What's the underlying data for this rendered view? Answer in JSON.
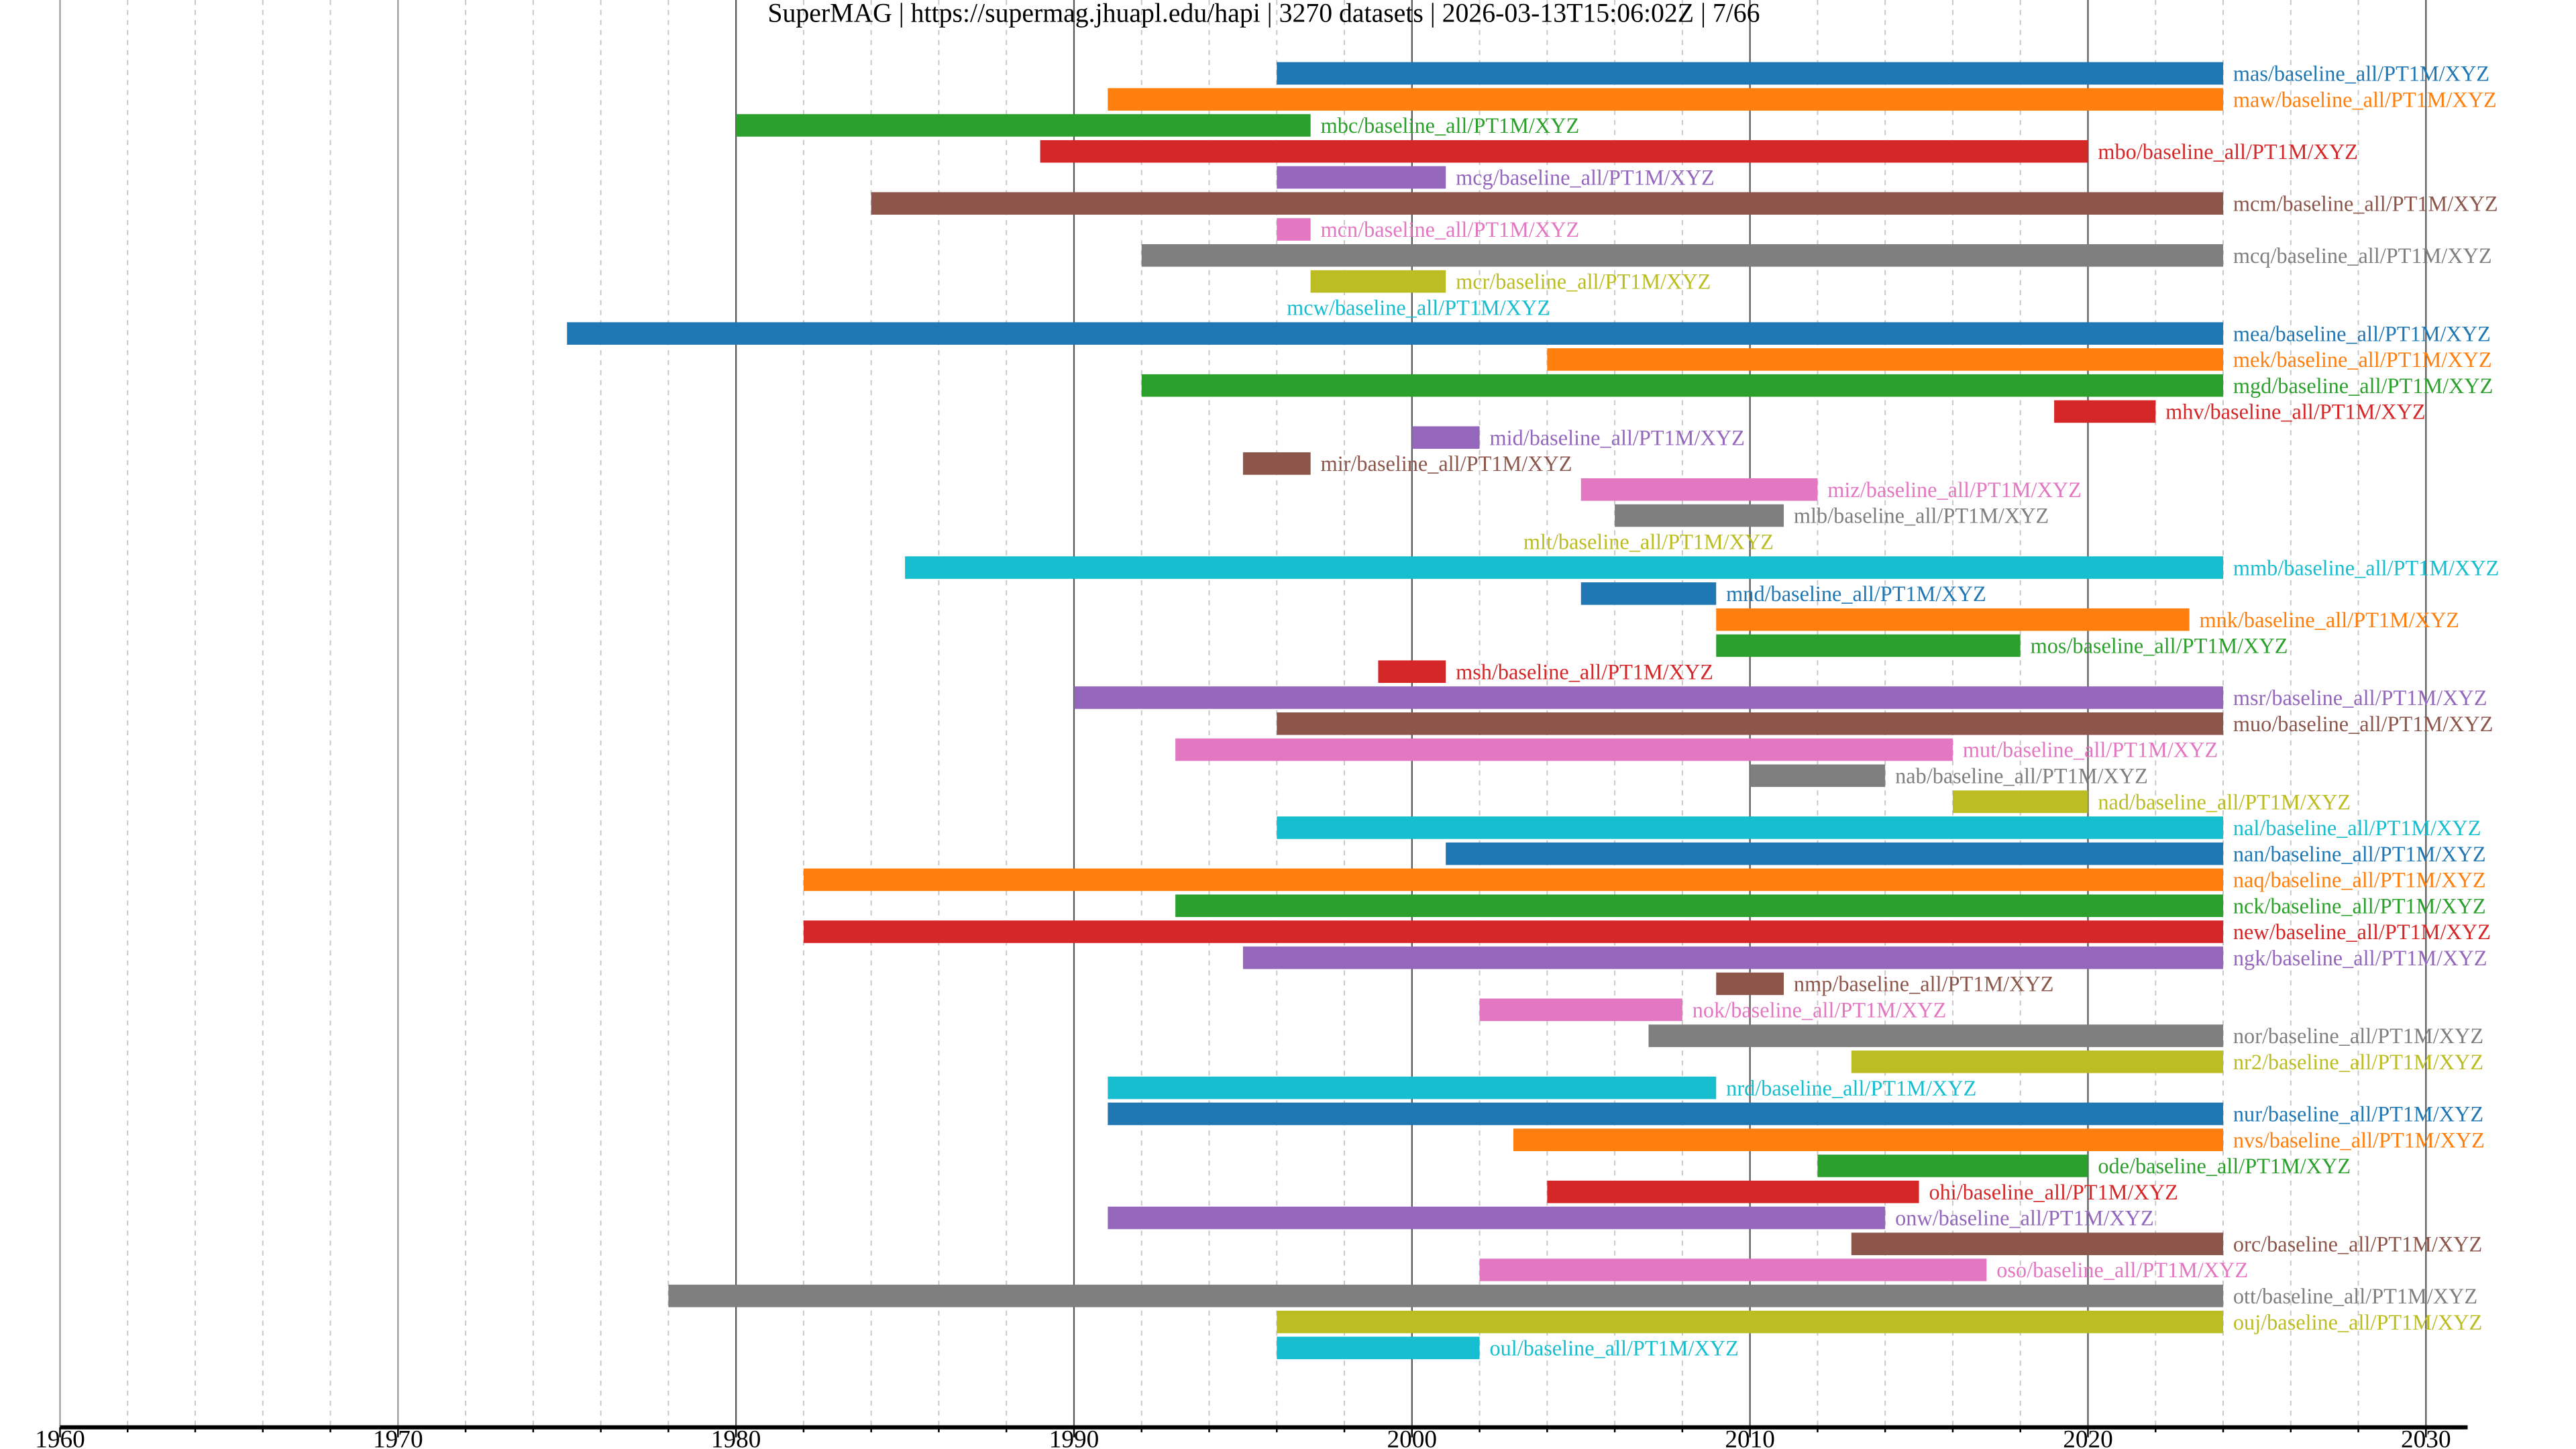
{
  "chart_data": {
    "type": "timeline",
    "title": "SuperMAG | https://supermag.jhuapl.edu/hapi | 3270 datasets | 2026-03-13T15:06:02Z | 7/66",
    "xlabel": "",
    "ylabel": "",
    "xlim": [
      1960,
      2031
    ],
    "x_ticks": [
      1960,
      1970,
      1980,
      1990,
      2000,
      2010,
      2020,
      2030
    ],
    "x_tick_labels": [
      "1960",
      "1970",
      "1980",
      "1990",
      "2000",
      "2010",
      "2020",
      "2030"
    ],
    "minor_tick_step": 2,
    "grid": true,
    "colors": [
      "#1f77b4",
      "#ff7f0e",
      "#2ca02c",
      "#d62728",
      "#9467bd",
      "#8c564b",
      "#e377c2",
      "#7f7f7f",
      "#bcbd22",
      "#17becf"
    ],
    "series": [
      {
        "name": "mas/baseline_all/PT1M/XYZ",
        "start": 1996,
        "end": 2024
      },
      {
        "name": "maw/baseline_all/PT1M/XYZ",
        "start": 1991,
        "end": 2024
      },
      {
        "name": "mbc/baseline_all/PT1M/XYZ",
        "start": 1980,
        "end": 1997
      },
      {
        "name": "mbo/baseline_all/PT1M/XYZ",
        "start": 1989,
        "end": 2020
      },
      {
        "name": "mcg/baseline_all/PT1M/XYZ",
        "start": 1996,
        "end": 2001
      },
      {
        "name": "mcm/baseline_all/PT1M/XYZ",
        "start": 1984,
        "end": 2024
      },
      {
        "name": "mcn/baseline_all/PT1M/XYZ",
        "start": 1996,
        "end": 1997
      },
      {
        "name": "mcq/baseline_all/PT1M/XYZ",
        "start": 1992,
        "end": 2024
      },
      {
        "name": "mcr/baseline_all/PT1M/XYZ",
        "start": 1997,
        "end": 2001
      },
      {
        "name": "mcw/baseline_all/PT1M/XYZ",
        "start": 1996,
        "end": 1996
      },
      {
        "name": "mea/baseline_all/PT1M/XYZ",
        "start": 1975,
        "end": 2024
      },
      {
        "name": "mek/baseline_all/PT1M/XYZ",
        "start": 2004,
        "end": 2024
      },
      {
        "name": "mgd/baseline_all/PT1M/XYZ",
        "start": 1992,
        "end": 2024
      },
      {
        "name": "mhv/baseline_all/PT1M/XYZ",
        "start": 2019,
        "end": 2022
      },
      {
        "name": "mid/baseline_all/PT1M/XYZ",
        "start": 2000,
        "end": 2002
      },
      {
        "name": "mir/baseline_all/PT1M/XYZ",
        "start": 1995,
        "end": 1997
      },
      {
        "name": "miz/baseline_all/PT1M/XYZ",
        "start": 2005,
        "end": 2012
      },
      {
        "name": "mlb/baseline_all/PT1M/XYZ",
        "start": 2006,
        "end": 2011
      },
      {
        "name": "mlt/baseline_all/PT1M/XYZ",
        "start": 2003,
        "end": 2003
      },
      {
        "name": "mmb/baseline_all/PT1M/XYZ",
        "start": 1985,
        "end": 2024
      },
      {
        "name": "mnd/baseline_all/PT1M/XYZ",
        "start": 2005,
        "end": 2009
      },
      {
        "name": "mnk/baseline_all/PT1M/XYZ",
        "start": 2009,
        "end": 2023
      },
      {
        "name": "mos/baseline_all/PT1M/XYZ",
        "start": 2009,
        "end": 2018
      },
      {
        "name": "msh/baseline_all/PT1M/XYZ",
        "start": 1999,
        "end": 2001
      },
      {
        "name": "msr/baseline_all/PT1M/XYZ",
        "start": 1990,
        "end": 2024
      },
      {
        "name": "muo/baseline_all/PT1M/XYZ",
        "start": 1996,
        "end": 2024
      },
      {
        "name": "mut/baseline_all/PT1M/XYZ",
        "start": 1993,
        "end": 2016
      },
      {
        "name": "nab/baseline_all/PT1M/XYZ",
        "start": 2010,
        "end": 2014
      },
      {
        "name": "nad/baseline_all/PT1M/XYZ",
        "start": 2016,
        "end": 2020
      },
      {
        "name": "nal/baseline_all/PT1M/XYZ",
        "start": 1996,
        "end": 2024
      },
      {
        "name": "nan/baseline_all/PT1M/XYZ",
        "start": 2001,
        "end": 2024
      },
      {
        "name": "naq/baseline_all/PT1M/XYZ",
        "start": 1982,
        "end": 2024
      },
      {
        "name": "nck/baseline_all/PT1M/XYZ",
        "start": 1993,
        "end": 2024
      },
      {
        "name": "new/baseline_all/PT1M/XYZ",
        "start": 1982,
        "end": 2024
      },
      {
        "name": "ngk/baseline_all/PT1M/XYZ",
        "start": 1995,
        "end": 2024
      },
      {
        "name": "nmp/baseline_all/PT1M/XYZ",
        "start": 2009,
        "end": 2011
      },
      {
        "name": "nok/baseline_all/PT1M/XYZ",
        "start": 2002,
        "end": 2008
      },
      {
        "name": "nor/baseline_all/PT1M/XYZ",
        "start": 2007,
        "end": 2024
      },
      {
        "name": "nr2/baseline_all/PT1M/XYZ",
        "start": 2013,
        "end": 2024
      },
      {
        "name": "nrd/baseline_all/PT1M/XYZ",
        "start": 1991,
        "end": 2009
      },
      {
        "name": "nur/baseline_all/PT1M/XYZ",
        "start": 1991,
        "end": 2024
      },
      {
        "name": "nvs/baseline_all/PT1M/XYZ",
        "start": 2003,
        "end": 2024
      },
      {
        "name": "ode/baseline_all/PT1M/XYZ",
        "start": 2012,
        "end": 2020
      },
      {
        "name": "ohi/baseline_all/PT1M/XYZ",
        "start": 2004,
        "end": 2015
      },
      {
        "name": "onw/baseline_all/PT1M/XYZ",
        "start": 1991,
        "end": 2014
      },
      {
        "name": "orc/baseline_all/PT1M/XYZ",
        "start": 2013,
        "end": 2024
      },
      {
        "name": "oso/baseline_all/PT1M/XYZ",
        "start": 2002,
        "end": 2017
      },
      {
        "name": "ott/baseline_all/PT1M/XYZ",
        "start": 1978,
        "end": 2024
      },
      {
        "name": "ouj/baseline_all/PT1M/XYZ",
        "start": 1996,
        "end": 2024
      },
      {
        "name": "oul/baseline_all/PT1M/XYZ",
        "start": 1996,
        "end": 2002
      }
    ]
  }
}
